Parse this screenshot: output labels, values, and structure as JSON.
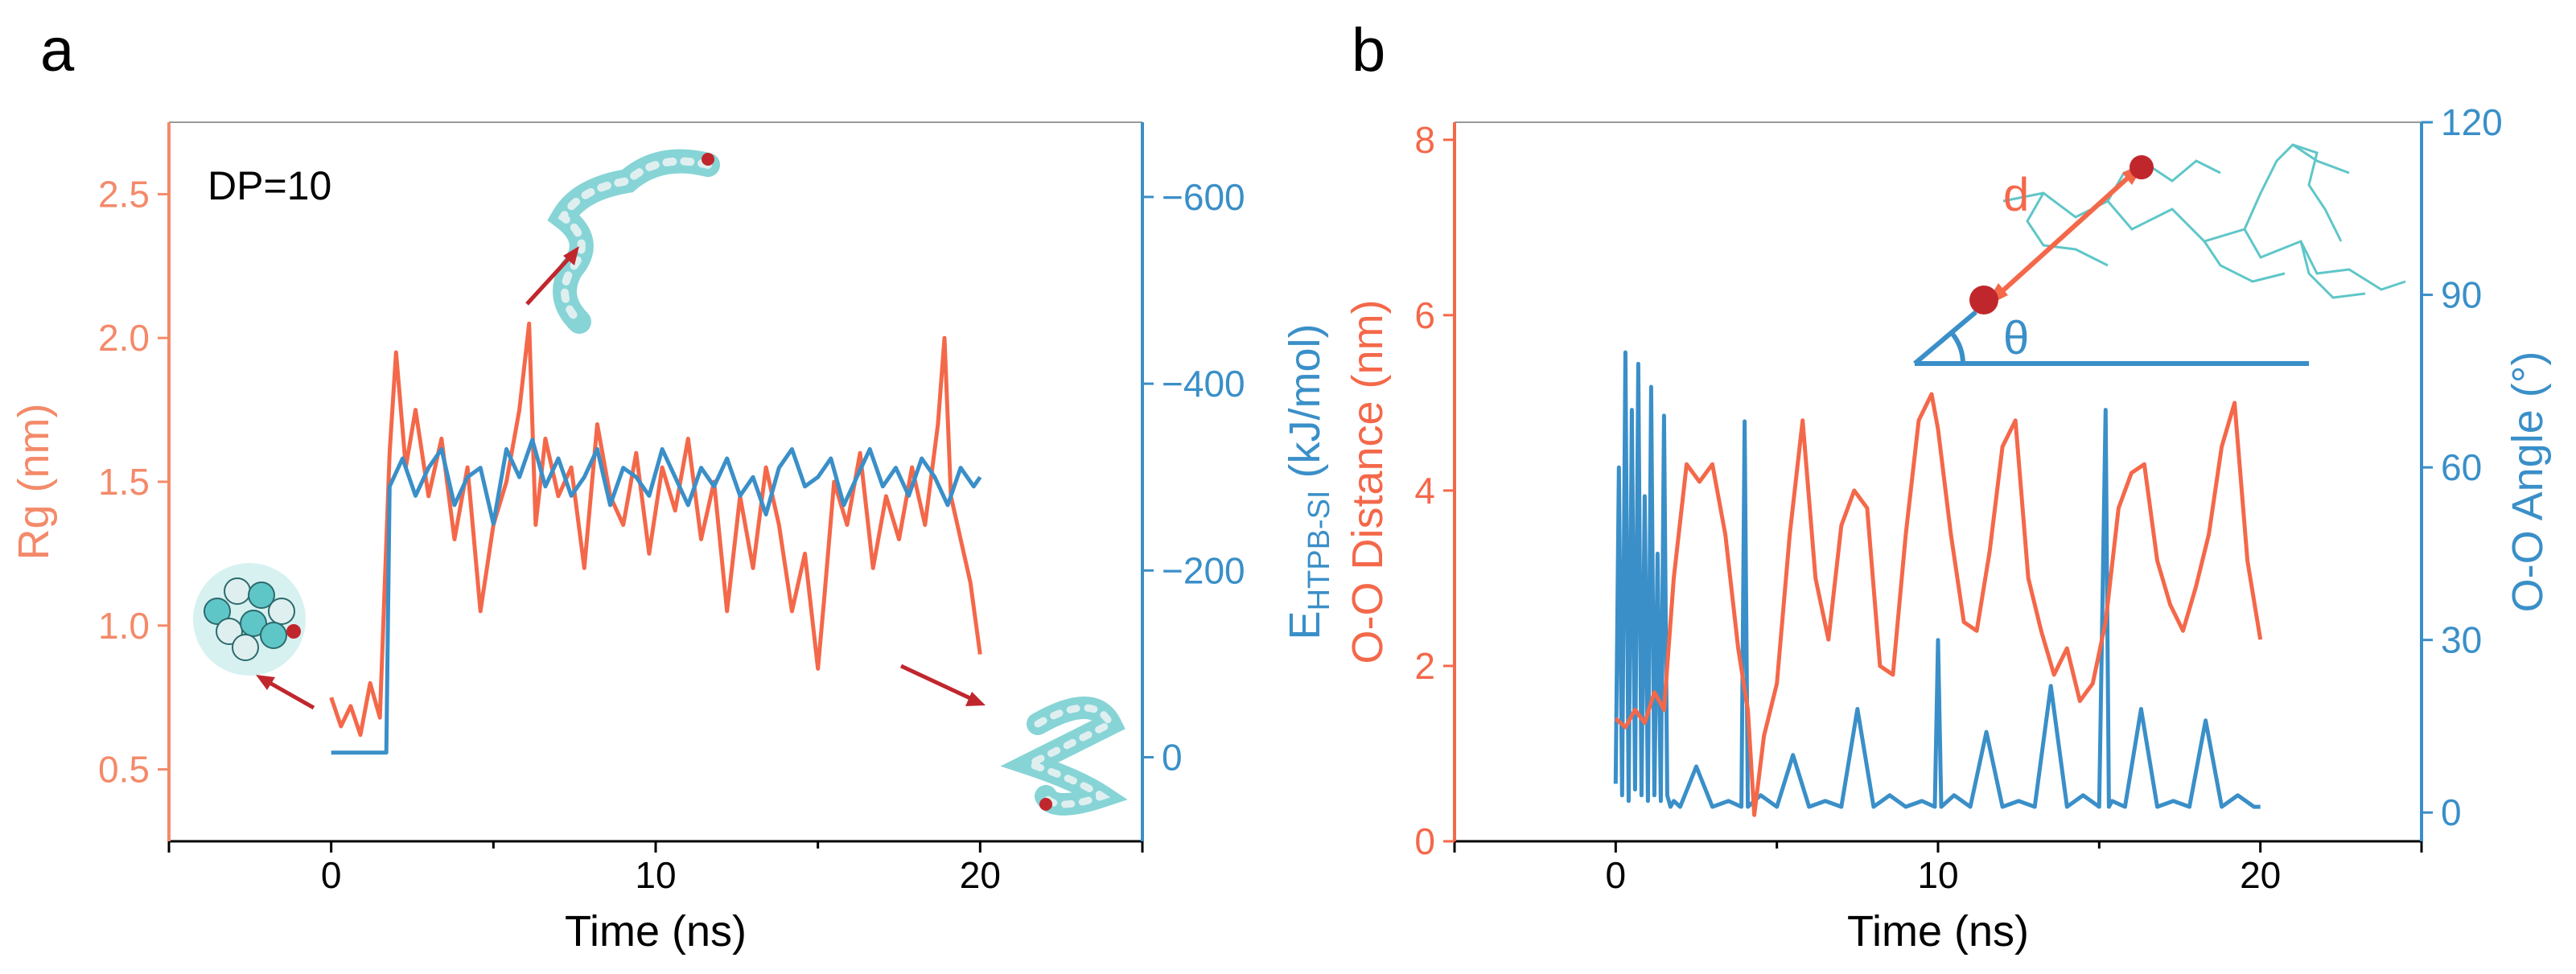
{
  "colors": {
    "orange": "#f4684a",
    "orange_axis": "#f38a6a",
    "blue": "#3a8fc8",
    "blue_axis": "#3a8fc8",
    "molecule": "#5fc6c8",
    "sphere": "#c0272d",
    "arrow": "#c0272d",
    "black": "#000000"
  },
  "panel_a": {
    "letter": "a",
    "inset_label": "DP=10",
    "molecule_icons": [
      "collapsed-polymer-icon",
      "extended-polymer-icon",
      "coiled-polymer-icon"
    ]
  },
  "panel_b": {
    "letter": "b",
    "inset": {
      "distance_label": "d",
      "angle_label": "θ"
    }
  },
  "chart_data": [
    {
      "type": "line",
      "panel": "a",
      "xlabel": "Time (ns)",
      "xlim": [
        -5,
        25
      ],
      "xticks": [
        0,
        10,
        20
      ],
      "y_left": {
        "label": "Rg (nm)",
        "lim": [
          0.25,
          2.75
        ],
        "ticks": [
          0.5,
          1.0,
          1.5,
          2.0,
          2.5
        ],
        "tick_labels": [
          "0.5",
          "1.0",
          "1.5",
          "2.0",
          "2.5"
        ]
      },
      "y_right": {
        "label_main": "E",
        "label_sub": "HTPB-SI",
        "label_rest": " (kJ/mol)",
        "lim": [
          90,
          -680
        ],
        "ticks": [
          0,
          -200,
          -400,
          -600
        ],
        "tick_labels": [
          "0",
          "−200",
          "−400",
          "−600"
        ]
      },
      "series": [
        {
          "axis": "left",
          "color": "#f4684a",
          "x": [
            0,
            0.3,
            0.6,
            0.9,
            1.2,
            1.5,
            1.8,
            2.0,
            2.3,
            2.6,
            3.0,
            3.4,
            3.8,
            4.2,
            4.6,
            5.0,
            5.4,
            5.8,
            6.1,
            6.3,
            6.6,
            7.0,
            7.4,
            7.8,
            8.2,
            8.6,
            9.0,
            9.4,
            9.8,
            10.2,
            10.6,
            11.0,
            11.4,
            11.8,
            12.2,
            12.6,
            13.0,
            13.4,
            13.8,
            14.2,
            14.6,
            15.0,
            15.2,
            15.5,
            15.9,
            16.3,
            16.7,
            17.1,
            17.5,
            17.9,
            18.3,
            18.7,
            18.9,
            19.1,
            19.4,
            19.7,
            20.0
          ],
          "y": [
            0.75,
            0.65,
            0.72,
            0.62,
            0.8,
            0.68,
            1.6,
            1.95,
            1.55,
            1.75,
            1.45,
            1.65,
            1.3,
            1.55,
            1.05,
            1.35,
            1.5,
            1.75,
            2.05,
            1.35,
            1.65,
            1.45,
            1.55,
            1.2,
            1.7,
            1.45,
            1.35,
            1.6,
            1.25,
            1.55,
            1.4,
            1.65,
            1.3,
            1.5,
            1.05,
            1.45,
            1.2,
            1.55,
            1.35,
            1.05,
            1.25,
            0.85,
            1.1,
            1.5,
            1.35,
            1.6,
            1.2,
            1.45,
            1.3,
            1.55,
            1.35,
            1.7,
            2.0,
            1.45,
            1.3,
            1.15,
            0.9
          ]
        },
        {
          "axis": "right",
          "color": "#3a8fc8",
          "x": [
            0,
            1.7,
            1.8,
            2.2,
            2.6,
            3.0,
            3.4,
            3.8,
            4.2,
            4.6,
            5.0,
            5.4,
            5.8,
            6.2,
            6.6,
            7.0,
            7.4,
            7.8,
            8.2,
            8.6,
            9.0,
            9.4,
            9.8,
            10.2,
            10.6,
            11.0,
            11.4,
            11.8,
            12.2,
            12.6,
            13.0,
            13.4,
            13.8,
            14.2,
            14.6,
            15.0,
            15.4,
            15.8,
            16.2,
            16.6,
            17.0,
            17.4,
            17.8,
            18.2,
            18.6,
            19.0,
            19.4,
            19.8,
            20.0
          ],
          "y": [
            -5,
            -5,
            -290,
            -320,
            -280,
            -310,
            -330,
            -270,
            -300,
            -310,
            -250,
            -330,
            -300,
            -340,
            -290,
            -320,
            -280,
            -300,
            -330,
            -270,
            -310,
            -300,
            -280,
            -330,
            -300,
            -270,
            -310,
            -290,
            -320,
            -280,
            -300,
            -260,
            -310,
            -330,
            -290,
            -300,
            -320,
            -270,
            -300,
            -330,
            -290,
            -310,
            -280,
            -320,
            -300,
            -270,
            -310,
            -290,
            -300
          ]
        }
      ]
    },
    {
      "type": "line",
      "panel": "b",
      "xlabel": "Time (ns)",
      "xlim": [
        -5,
        25
      ],
      "xticks": [
        0,
        10,
        20
      ],
      "y_left": {
        "label": "O-O Distance (nm)",
        "lim": [
          0,
          8.2
        ],
        "ticks": [
          0,
          2,
          4,
          6,
          8
        ],
        "tick_labels": [
          "0",
          "2",
          "4",
          "6",
          "8"
        ]
      },
      "y_right": {
        "label": "O-O Angle (°)",
        "lim": [
          -5,
          120
        ],
        "ticks": [
          0,
          30,
          60,
          90,
          120
        ],
        "tick_labels": [
          "0",
          "30",
          "60",
          "90",
          "120"
        ]
      },
      "series": [
        {
          "axis": "right",
          "color": "#3a8fc8",
          "x": [
            0,
            0.1,
            0.2,
            0.3,
            0.4,
            0.5,
            0.6,
            0.7,
            0.8,
            0.9,
            1.0,
            1.1,
            1.2,
            1.3,
            1.4,
            1.5,
            1.6,
            1.7,
            1.8,
            2.0,
            2.5,
            3.0,
            3.5,
            3.9,
            4.0,
            4.1,
            4.5,
            5.0,
            5.5,
            6.0,
            6.5,
            7.0,
            7.5,
            8.0,
            8.5,
            9.0,
            9.5,
            9.9,
            10.0,
            10.1,
            10.5,
            11.0,
            11.5,
            12.0,
            12.5,
            13.0,
            13.5,
            14.0,
            14.5,
            15.0,
            15.2,
            15.3,
            15.4,
            15.8,
            16.3,
            16.8,
            17.3,
            17.8,
            18.3,
            18.8,
            19.3,
            19.8,
            20.0
          ],
          "y": [
            5,
            60,
            3,
            80,
            2,
            70,
            4,
            78,
            3,
            55,
            2,
            74,
            3,
            45,
            2,
            69,
            3,
            1,
            2,
            1,
            8,
            1,
            2,
            1,
            68,
            1,
            3,
            1,
            10,
            1,
            2,
            1,
            18,
            1,
            3,
            1,
            2,
            1,
            30,
            1,
            3,
            1,
            14,
            1,
            2,
            1,
            22,
            1,
            3,
            1,
            70,
            1,
            2,
            1,
            18,
            1,
            2,
            1,
            16,
            1,
            3,
            1,
            1
          ]
        },
        {
          "axis": "left",
          "color": "#f4684a",
          "x": [
            0,
            0.3,
            0.6,
            0.9,
            1.2,
            1.5,
            1.8,
            2.2,
            2.6,
            3.0,
            3.4,
            3.8,
            4.1,
            4.3,
            4.6,
            5.0,
            5.4,
            5.8,
            6.2,
            6.6,
            7.0,
            7.4,
            7.8,
            8.2,
            8.6,
            9.0,
            9.4,
            9.8,
            10.0,
            10.4,
            10.8,
            11.2,
            11.6,
            12.0,
            12.4,
            12.8,
            13.2,
            13.6,
            14.0,
            14.4,
            14.8,
            15.2,
            15.6,
            16.0,
            16.4,
            16.8,
            17.2,
            17.6,
            18.0,
            18.4,
            18.8,
            19.2,
            19.6,
            20.0
          ],
          "y": [
            1.4,
            1.3,
            1.5,
            1.35,
            1.7,
            1.5,
            3.0,
            4.3,
            4.1,
            4.3,
            3.5,
            2.2,
            1.5,
            0.3,
            1.2,
            1.8,
            3.5,
            4.8,
            3.0,
            2.3,
            3.6,
            4.0,
            3.8,
            2.0,
            1.9,
            3.5,
            4.8,
            5.1,
            4.7,
            3.5,
            2.5,
            2.4,
            3.3,
            4.5,
            4.8,
            3.0,
            2.4,
            1.9,
            2.2,
            1.6,
            1.8,
            2.5,
            3.8,
            4.2,
            4.3,
            3.2,
            2.7,
            2.4,
            2.9,
            3.5,
            4.5,
            5.0,
            3.2,
            2.3
          ]
        }
      ]
    }
  ]
}
